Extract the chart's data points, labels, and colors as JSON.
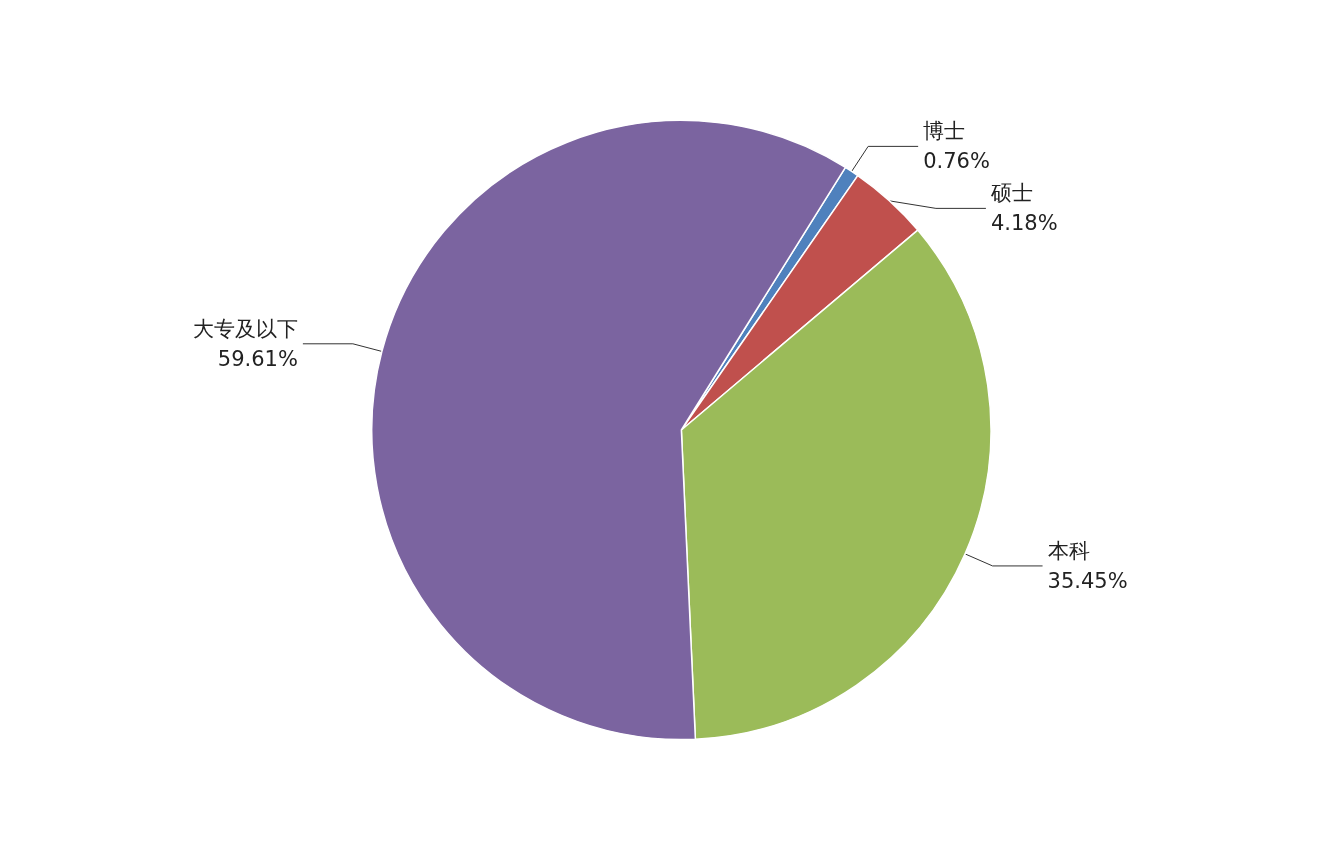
{
  "chart_data": {
    "type": "pie",
    "categories": [
      "博士",
      "硕士",
      "本科",
      "大专及以下"
    ],
    "values": [
      0.76,
      4.18,
      35.45,
      59.61
    ],
    "value_labels": [
      "0.76%",
      "4.18%",
      "35.45%",
      "59.61%"
    ],
    "colors": [
      "#4f81bd",
      "#c0504d",
      "#9bbb59",
      "#7b64a0"
    ],
    "legend": false
  }
}
